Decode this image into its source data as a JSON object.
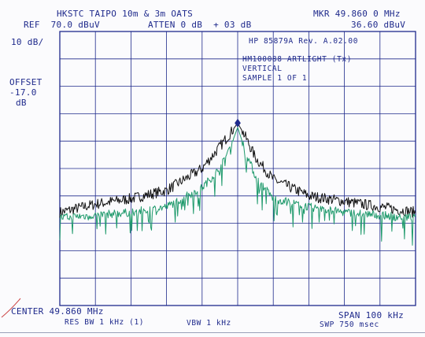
{
  "header": {
    "site": "HKSTC TAIPO 10m & 3m OATS",
    "ref": "REF  70.0 dBuV",
    "atten": "ATTEN 0 dB  + 03 dB",
    "marker_label": "MKR 49.860 0 MHz",
    "marker_level": "36.60 dBuV"
  },
  "left_panel": {
    "scale": "10 dB/",
    "offset_label": "OFFSET",
    "offset_value": "-17.0",
    "offset_unit": "dB"
  },
  "annotations": {
    "firmware": "HP 85879A Rev. A.02.00",
    "device": "HM100088 ARTLIGHT (Tx)",
    "polarization": "VERTICAL",
    "sample": "SAMPLE 1 OF 1"
  },
  "footer": {
    "center": "CENTER 49.860 MHz",
    "span": "SPAN 100 kHz",
    "res_bw": "RES BW 1 kHz (1)",
    "vbw": "VBW 1 kHz",
    "sweep": "SWP 750 msec"
  },
  "colors": {
    "grid": "#1f2a8c",
    "trace_max": "#111111",
    "trace_avg": "#1f9a6c",
    "marker": "#1f2a8c"
  },
  "chart_data": {
    "type": "line",
    "x_center_mhz": 49.86,
    "x_span_khz": 100,
    "xlim_khz": [
      -50,
      50
    ],
    "ylim_dbuv": [
      -30,
      70
    ],
    "ref_level_dbuv": 70,
    "scale_db_per_div": 10,
    "grid": true,
    "marker": {
      "x_khz": 0,
      "y_dbuv": 36.6
    },
    "series": [
      {
        "points": [
          [
            -50,
            4
          ],
          [
            -40,
            7
          ],
          [
            -30,
            9
          ],
          [
            -20,
            12
          ],
          [
            -10,
            20
          ],
          [
            -5,
            28
          ],
          [
            -2,
            33
          ],
          [
            0,
            36.6
          ],
          [
            2,
            32
          ],
          [
            5,
            24
          ],
          [
            10,
            16
          ],
          [
            20,
            10
          ],
          [
            30,
            8
          ],
          [
            40,
            6
          ],
          [
            50,
            4
          ]
        ]
      },
      {
        "points": [
          [
            -50,
            2
          ],
          [
            -40,
            3
          ],
          [
            -30,
            4
          ],
          [
            -20,
            6
          ],
          [
            -10,
            13
          ],
          [
            -5,
            20
          ],
          [
            -2,
            28
          ],
          [
            0,
            35
          ],
          [
            2,
            27
          ],
          [
            5,
            17
          ],
          [
            10,
            9
          ],
          [
            20,
            6
          ],
          [
            30,
            4
          ],
          [
            40,
            3
          ],
          [
            50,
            2
          ]
        ]
      }
    ]
  }
}
